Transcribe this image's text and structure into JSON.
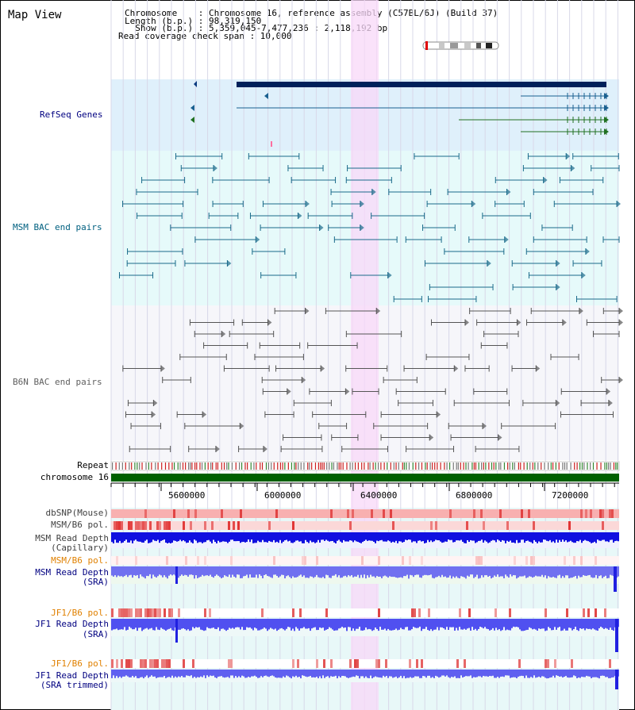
{
  "title": "Map View",
  "info": {
    "line1": "Chromosome    : Chromosome 16, reference assembly (C57BL/6J) (Build 37)",
    "line2": "Length (b.p.) : 98,319,150",
    "line3": "  Show (b.p.) : 5,359,045-7,477,236 : 2,118,192 bp",
    "line4": "Read coverage check span : 10,000"
  },
  "tracks": {
    "refseq": "RefSeq Genes",
    "msm_bac": "MSM BAC end pairs",
    "b6n_bac": "B6N BAC end pairs",
    "repeat": "Repeat",
    "chromosome": "chromosome 16",
    "dbsnp": "dbSNP(Mouse)",
    "msm_pol": "MSM/B6 pol.",
    "msm_depth_cap": "MSM Read Depth",
    "msm_depth_cap2": "(Capillary)",
    "msm_pol_sra": "MSM/B6 pol.",
    "msm_depth_sra": "MSM Read Depth",
    "msm_depth_sra2": "(SRA)",
    "jf1_pol": "JF1/B6 pol.",
    "jf1_depth": "JF1 Read Depth",
    "jf1_depth2": "(SRA)",
    "jf1_pol2": "JF1/B6 pol.",
    "jf1_depth_trim": "JF1 Read Depth",
    "jf1_depth_trim2": "(SRA trimmed)"
  },
  "axis": {
    "ticks": [
      "5600000",
      "6000000",
      "6400000",
      "6800000",
      "7200000"
    ]
  },
  "colors": {
    "refseq_label": "#000080",
    "msm_label": "#006080",
    "b6n_label": "#606060",
    "msm_sra_label": "#000080",
    "pol_label": "#e08000",
    "highlight": "#f8d8f8",
    "chromosome_bar": "#006000"
  }
}
